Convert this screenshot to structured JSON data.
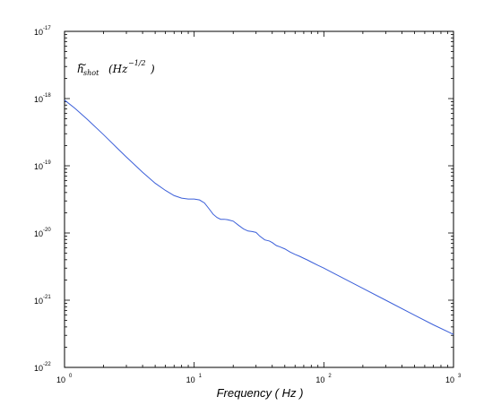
{
  "chart_data": {
    "type": "line",
    "title": "",
    "xlabel": "Frequency ( Hz )",
    "ylabel": "",
    "xscale": "log",
    "yscale": "log",
    "xlim": [
      1,
      1000
    ],
    "ylim": [
      1e-22,
      1e-17
    ],
    "grid": false,
    "legend": "none",
    "annotation": {
      "main": "h",
      "accent": "~",
      "subscript": "shot",
      "unit_base": "(Hz",
      "unit_exponent": "−1/2",
      "unit_close": ")"
    },
    "x_ticks": [
      {
        "value": 1,
        "base": "10",
        "exp": "0"
      },
      {
        "value": 10,
        "base": "10",
        "exp": "1"
      },
      {
        "value": 100,
        "base": "10",
        "exp": "2"
      },
      {
        "value": 1000,
        "base": "10",
        "exp": "3"
      }
    ],
    "y_ticks": [
      {
        "value": 1e-22,
        "base": "10",
        "exp": "-22"
      },
      {
        "value": 1e-21,
        "base": "10",
        "exp": "-21"
      },
      {
        "value": 1e-20,
        "base": "10",
        "exp": "-20"
      },
      {
        "value": 1e-19,
        "base": "10",
        "exp": "-19"
      },
      {
        "value": 1e-18,
        "base": "10",
        "exp": "-18"
      },
      {
        "value": 1e-17,
        "base": "10",
        "exp": "-17"
      }
    ],
    "series": [
      {
        "color": "#3b5fd9",
        "x": [
          1,
          1.2,
          1.5,
          2,
          2.5,
          3,
          4,
          5,
          6,
          7,
          8,
          9,
          10,
          11,
          12,
          13,
          14,
          15,
          16,
          17,
          18,
          20,
          22,
          24,
          26,
          28,
          30,
          32,
          35,
          38,
          40,
          43,
          46,
          50,
          55,
          60,
          65,
          70,
          75,
          80,
          90,
          100,
          120,
          150,
          200,
          300,
          500,
          700,
          1000
        ],
        "y": [
          9.5e-19,
          7.2e-19,
          4.9e-19,
          2.9e-19,
          1.9e-19,
          1.35e-19,
          8e-20,
          5.5e-20,
          4.3e-20,
          3.6e-20,
          3.3e-20,
          3.2e-20,
          3.2e-20,
          3.1e-20,
          2.8e-20,
          2.3e-20,
          1.9e-20,
          1.7e-20,
          1.6e-20,
          1.6e-20,
          1.58e-20,
          1.5e-20,
          1.3e-20,
          1.15e-20,
          1.07e-20,
          1.05e-20,
          1.02e-20,
          9e-21,
          7.9e-21,
          7.6e-21,
          7.2e-21,
          6.5e-21,
          6.2e-21,
          5.8e-21,
          5.2e-21,
          4.8e-21,
          4.5e-21,
          4.2e-21,
          3.95e-21,
          3.7e-21,
          3.3e-21,
          3e-21,
          2.5e-21,
          2e-21,
          1.5e-21,
          1e-21,
          6e-22,
          4.3e-22,
          3.1e-22
        ]
      }
    ]
  }
}
